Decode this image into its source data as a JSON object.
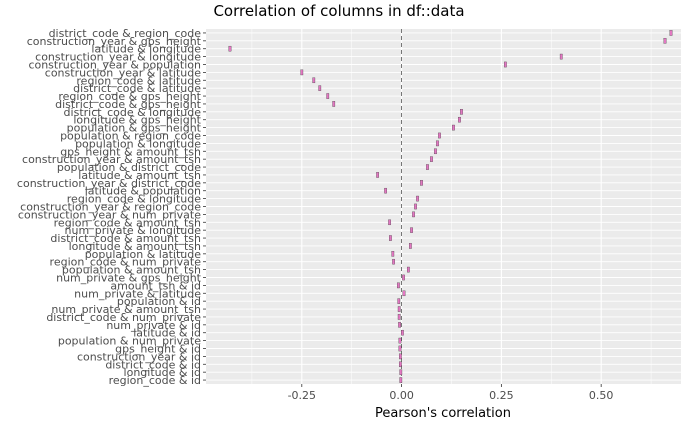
{
  "chart_data": {
    "type": "scatter",
    "title": "Correlation of columns in df::data",
    "xlabel": "Pearson's correlation",
    "ylabel": "",
    "xlim": [
      -0.49,
      0.7
    ],
    "x_ticks": [
      "-0.25",
      "0.00",
      "0.25",
      "0.50"
    ],
    "x_tick_values": [
      -0.25,
      0.0,
      0.25,
      0.5
    ],
    "reference_line": 0,
    "grid": true,
    "background": "#ebebeb",
    "point_color": "#e377c2",
    "categories": [
      "district_code & region_code",
      "construction_year & gps_height",
      "latitude & longitude",
      "construction_year & longitude",
      "construction_year & population",
      "construction_year & latitude",
      "region_code & latitude",
      "district_code & latitude",
      "region_code & gps_height",
      "district_code & gps_height",
      "district_code & longitude",
      "longitude & gps_height",
      "population & gps_height",
      "population & region_code",
      "population & longitude",
      "gps_height & amount_tsh",
      "construction_year & amount_tsh",
      "population & district_code",
      "latitude & amount_tsh",
      "construction_year & district_code",
      "latitude & population",
      "region_code & longitude",
      "construction_year & region_code",
      "construction_year & num_private",
      "region_code & amount_tsh",
      "num_private & longitude",
      "district_code & amount_tsh",
      "longitude & amount_tsh",
      "population & latitude",
      "region_code & num_private",
      "population & amount_tsh",
      "num_private & gps_height",
      "amount_tsh & id",
      "num_private & latitude",
      "population & id",
      "num_private & amount_tsh",
      "district_code & num_private",
      "num_private & id",
      "latitude & id",
      "population & num_private",
      "gps_height & id",
      "construction_year & id",
      "district_code & id",
      "longitude & id",
      "region_code & id"
    ],
    "values": [
      0.675,
      0.66,
      -0.43,
      0.4,
      0.26,
      -0.25,
      -0.22,
      -0.205,
      -0.185,
      -0.17,
      0.15,
      0.145,
      0.13,
      0.095,
      0.09,
      0.085,
      0.075,
      0.065,
      -0.06,
      0.05,
      -0.04,
      0.04,
      0.035,
      0.03,
      -0.03,
      0.025,
      -0.028,
      0.022,
      -0.022,
      -0.02,
      0.017,
      0.005,
      -0.008,
      0.006,
      -0.007,
      -0.006,
      -0.006,
      -0.005,
      0.002,
      -0.004,
      -0.004,
      -0.003,
      -0.003,
      -0.002,
      -0.002
    ],
    "interval": 0.005
  }
}
